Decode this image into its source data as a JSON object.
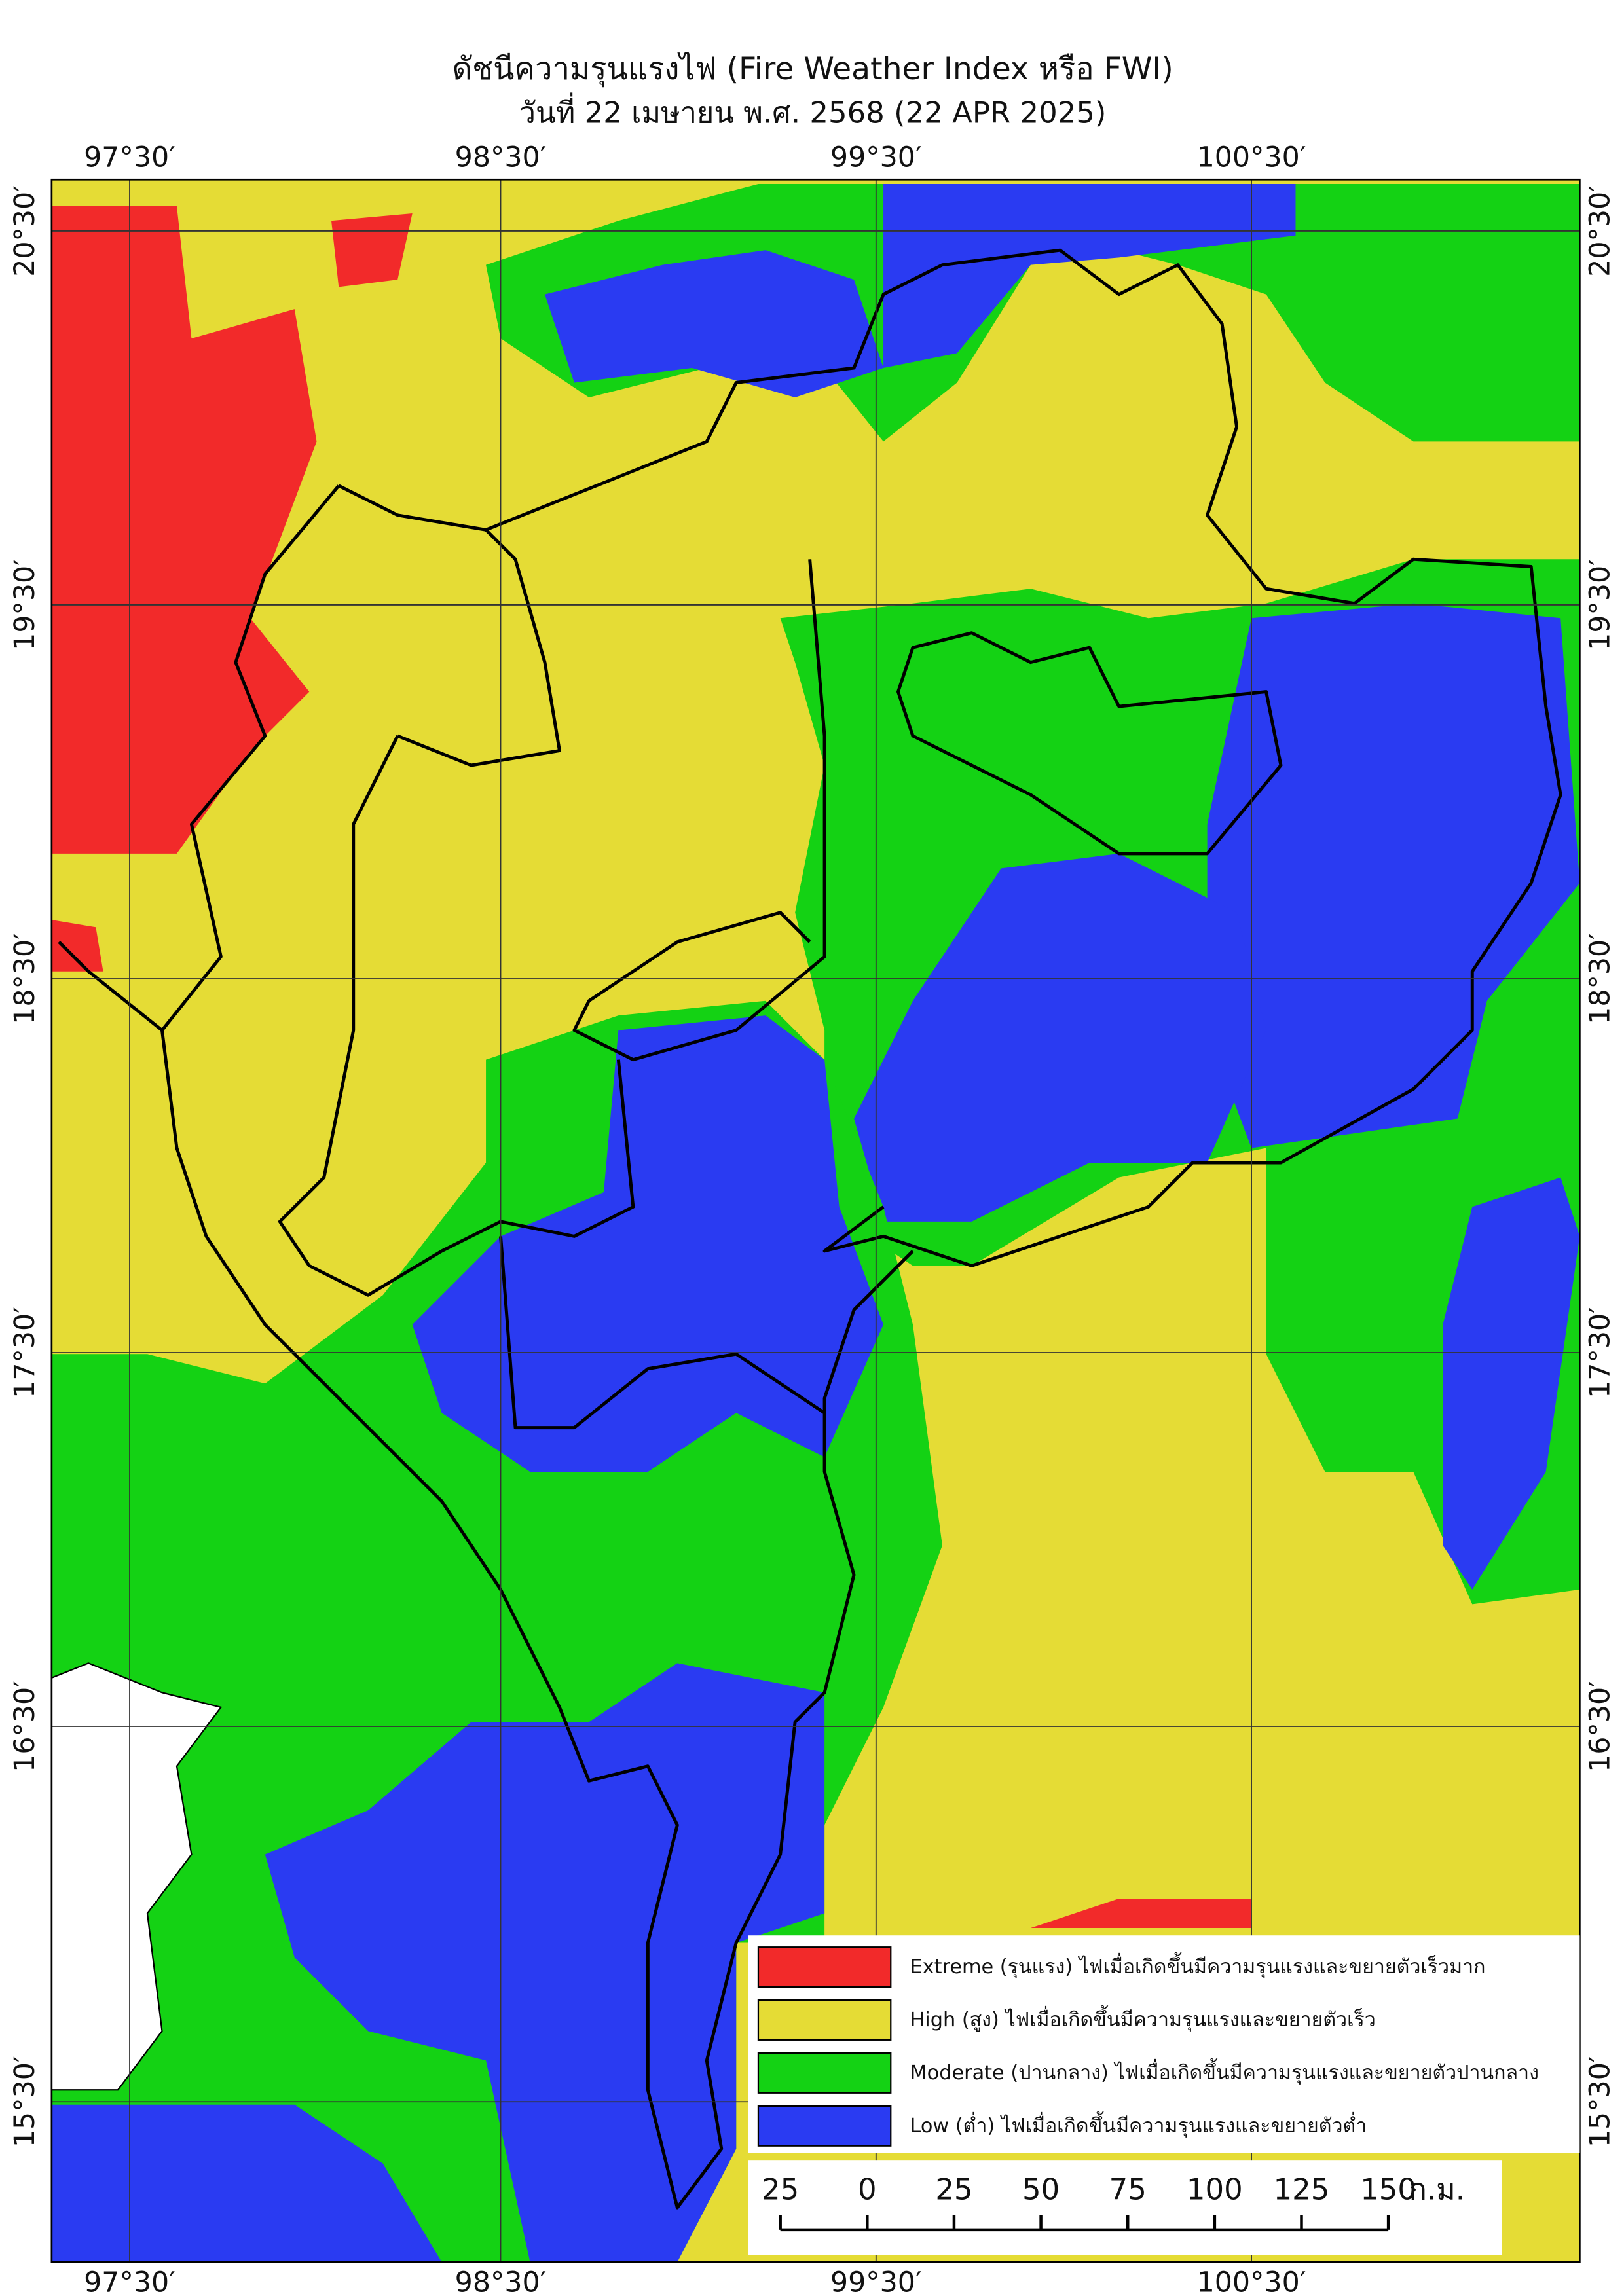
{
  "title": "ดัชนีความรุนแรงไฟ (Fire Weather Index หรือ FWI)",
  "subtitle": "วันที่ 22 เมษายน พ.ศ. 2568 (22 APR 2025)",
  "map": {
    "lon_labels": [
      "97°30′",
      "98°30′",
      "99°30′",
      "100°30′"
    ],
    "lat_labels": [
      "20°30′",
      "19°30′",
      "18°30′",
      "17°30′",
      "16°30′",
      "15°30′"
    ]
  },
  "legend": [
    {
      "label": "Extreme (รุนแรง) ไฟเมื่อเกิดขึ้นมีความรุนแรงและขยายตัวเร็วมาก",
      "color": "#f22a2a"
    },
    {
      "label": "High (สูง) ไฟเมื่อเกิดขึ้นมีความรุนแรงและขยายตัวเร็ว",
      "color": "#e5dc35"
    },
    {
      "label": "Moderate (ปานกลาง) ไฟเมื่อเกิดขึ้นมีความรุนแรงและขยายตัวปานกลาง",
      "color": "#14d214"
    },
    {
      "label": "Low (ต่ำ) ไฟเมื่อเกิดขึ้นมีความรุนแรงและขยายตัวต่ำ",
      "color": "#2a3bf2"
    }
  ],
  "scale_bar": {
    "ticks": [
      "25",
      "0",
      "25",
      "50",
      "75",
      "100",
      "125",
      "150"
    ],
    "unit": "ก.ม."
  }
}
